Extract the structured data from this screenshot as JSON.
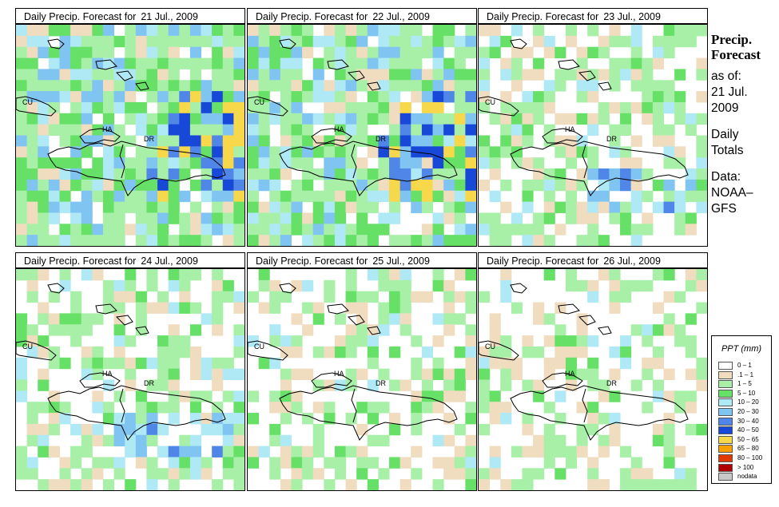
{
  "panels": [
    {
      "title": "Daily Precip. Forecast for",
      "date": "21 Jul., 2009",
      "level": 3
    },
    {
      "title": "Daily Precip. Forecast for",
      "date": "22 Jul., 2009",
      "level": 3
    },
    {
      "title": "Daily Precip. Forecast for",
      "date": "23 Jul., 2009",
      "level": 2
    },
    {
      "title": "Daily Precip. Forecast for",
      "date": "24 Jul., 2009",
      "level": 2
    },
    {
      "title": "Daily Precip. Forecast for",
      "date": "25 Jul., 2009",
      "level": 1
    },
    {
      "title": "Daily Precip. Forecast for",
      "date": "26 Jul., 2009",
      "level": 1
    }
  ],
  "map_labels": {
    "cu": "CU",
    "ha": "HA",
    "dr": "DR"
  },
  "sidebar": {
    "heading_1": "Precip.",
    "heading_2": "Forecast",
    "as_of": "as of:",
    "date_1": "21 Jul.",
    "date_2": "2009",
    "daily": "Daily",
    "totals": "Totals",
    "data_label": "Data:",
    "source_1": "NOAA–",
    "source_2": "GFS"
  },
  "legend": {
    "title": "PPT (mm)",
    "items": [
      {
        "label": "0 – 1",
        "color": "#ffffff"
      },
      {
        "label": ".1 – 1",
        "color": "#f0dcbf"
      },
      {
        "label": "1 – 5",
        "color": "#a8f0a8"
      },
      {
        "label": "5 – 10",
        "color": "#66e066"
      },
      {
        "label": "10 – 20",
        "color": "#aee9f5"
      },
      {
        "label": "20 – 30",
        "color": "#80c4f2"
      },
      {
        "label": "30 – 40",
        "color": "#4f86e8"
      },
      {
        "label": "40 – 50",
        "color": "#1848d8"
      },
      {
        "label": "50 – 65",
        "color": "#f7d84a"
      },
      {
        "label": "65 – 80",
        "color": "#f7a000"
      },
      {
        "label": "80 – 100",
        "color": "#e03a00"
      },
      {
        "label": "> 100",
        "color": "#b00000"
      },
      {
        "label": "nodata",
        "color": "#c8c8c8"
      }
    ]
  }
}
